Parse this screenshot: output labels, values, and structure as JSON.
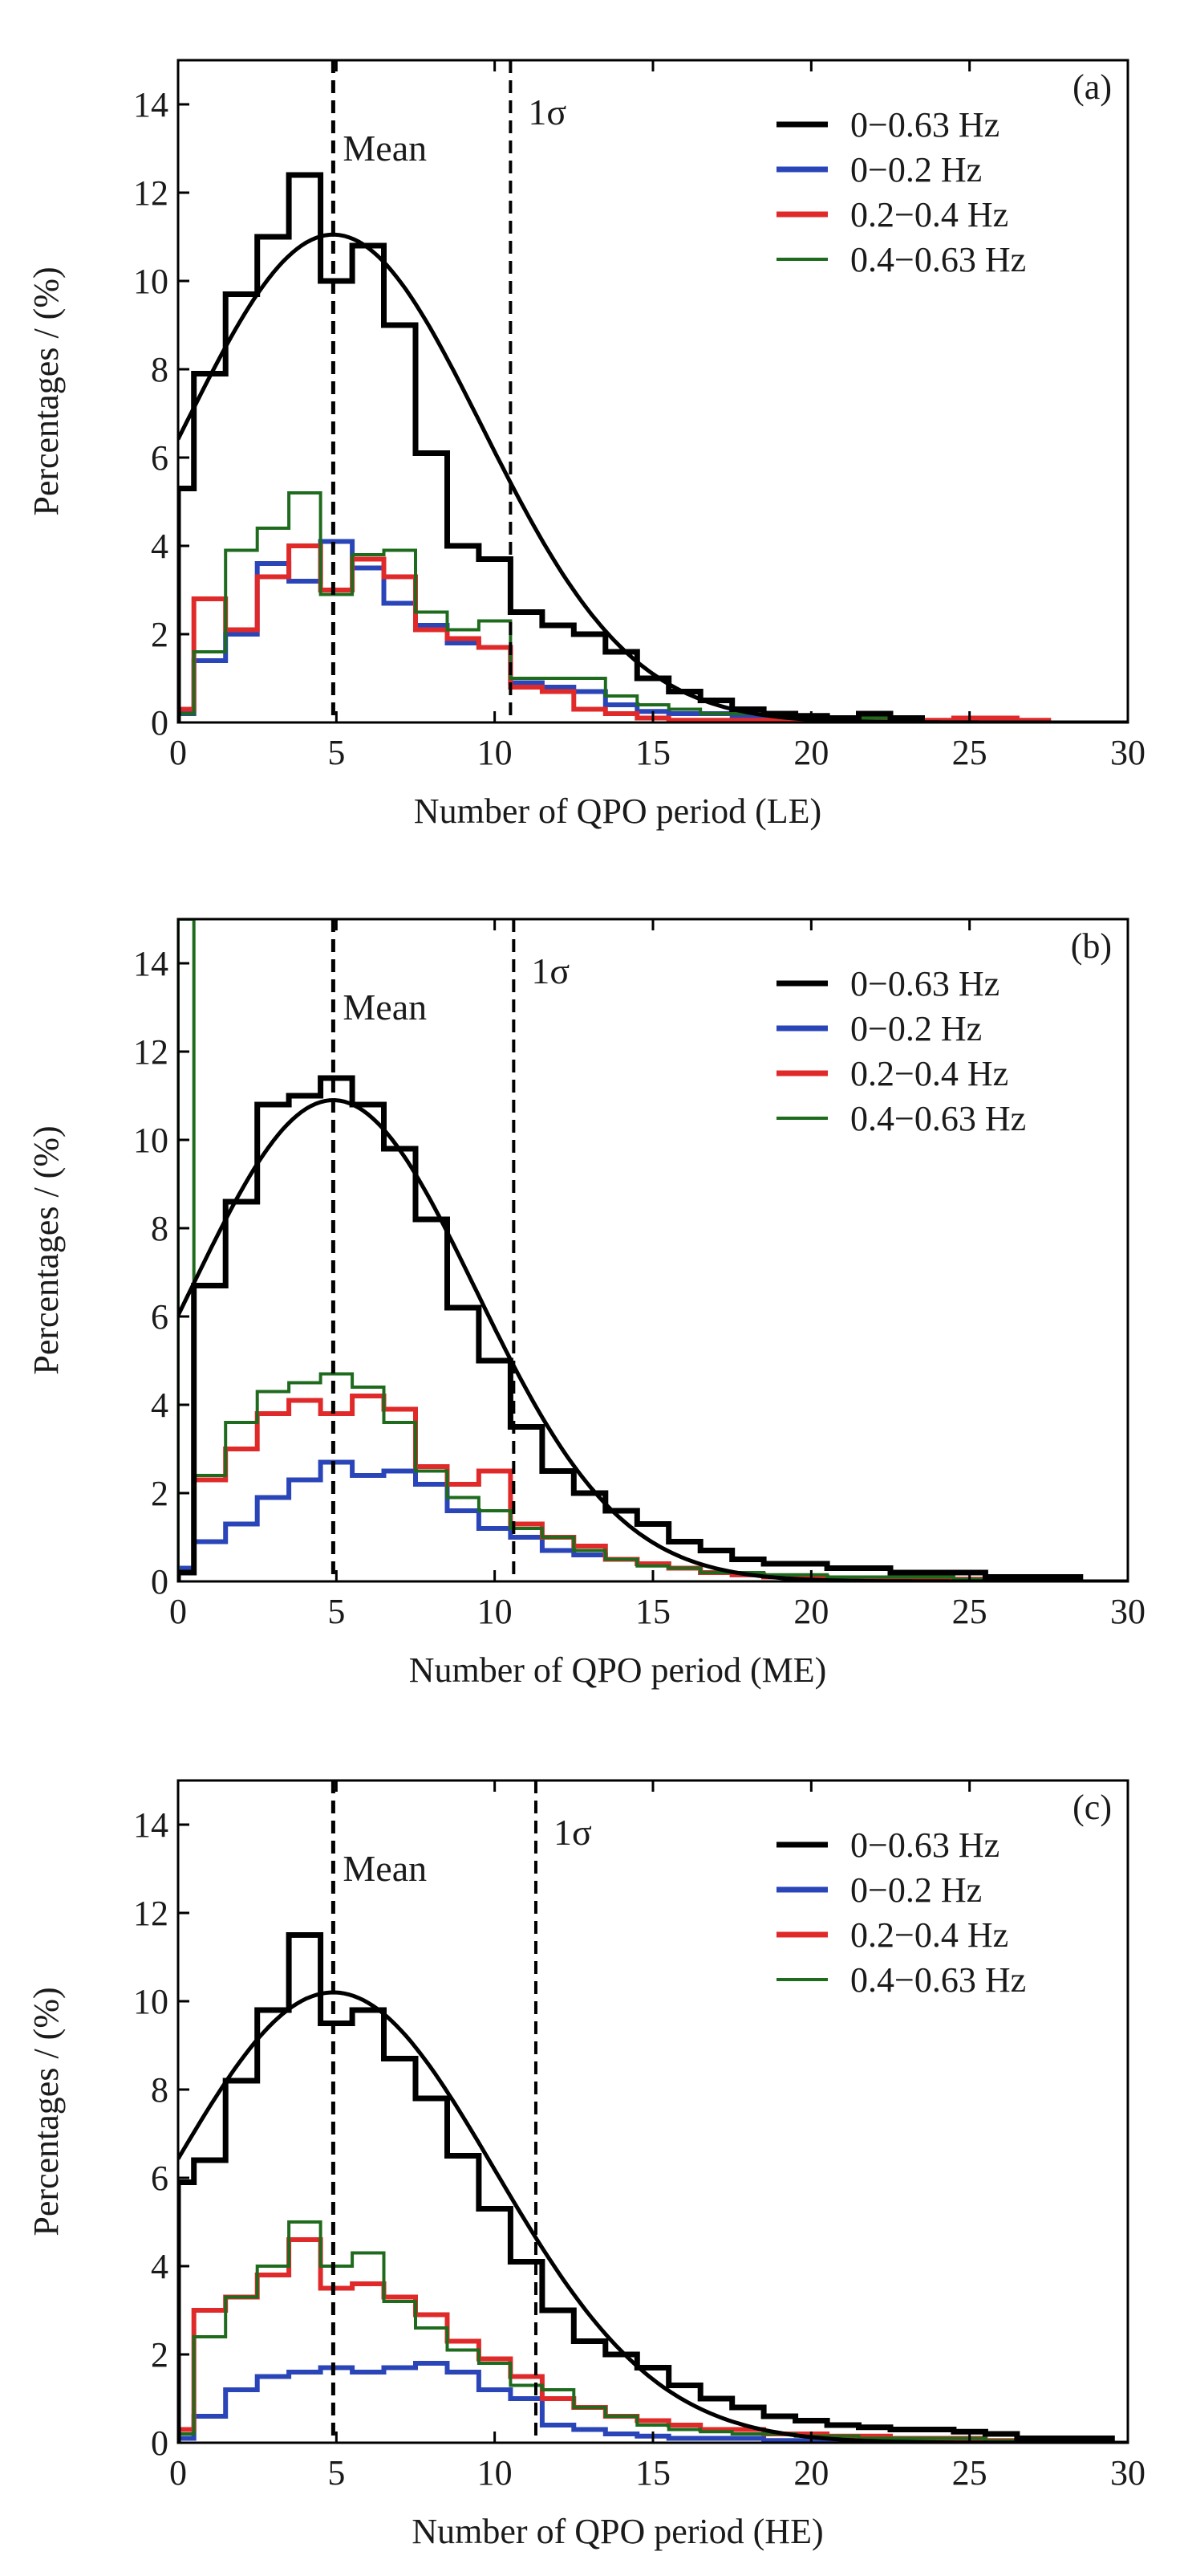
{
  "chart_data": [
    {
      "type": "line",
      "panel_label": "(a)",
      "xlabel": "Number of  QPO period (LE)",
      "ylabel": "Percentages / (%)",
      "xlim": [
        0,
        30
      ],
      "ylim": [
        0,
        15
      ],
      "xticks": [
        0,
        5,
        10,
        15,
        20,
        25,
        30
      ],
      "yticks": [
        0,
        2,
        4,
        6,
        8,
        10,
        12,
        14
      ],
      "mean_line": {
        "label": "Mean",
        "x": 4.9
      },
      "sigma_line": {
        "label": "1σ",
        "x": 10.5
      },
      "fit": {
        "peak": 11.05,
        "center": 4.9,
        "sigma": 4.7
      },
      "legend": {
        "position": "top-right"
      },
      "series": [
        {
          "name": "0−0.63 Hz",
          "color": "#000000",
          "stroke_width": 7,
          "bin_edges": [
            0,
            0.5,
            1.5,
            2.5,
            3.5,
            4.5,
            5.5,
            6.5,
            7.5,
            8.5,
            9.5,
            10.5,
            11.5,
            12.5,
            13.5,
            14.5,
            15.5,
            16.5,
            17.5,
            18.5,
            19.5,
            20.5,
            21.5,
            22.5,
            23.5
          ],
          "values": [
            5.3,
            7.9,
            9.7,
            11.0,
            12.4,
            10.0,
            10.8,
            9.0,
            6.1,
            4.0,
            3.7,
            2.5,
            2.2,
            2.0,
            1.6,
            1.0,
            0.7,
            0.5,
            0.3,
            0.2,
            0.15,
            0.1,
            0.2,
            0.1
          ]
        },
        {
          "name": "0−0.2 Hz",
          "color": "#2a45b8",
          "stroke_width": 6,
          "bin_edges": [
            0,
            0.5,
            1.5,
            2.5,
            3.5,
            4.5,
            5.5,
            6.5,
            7.5,
            8.5,
            9.5,
            10.5,
            11.5,
            12.5,
            13.5,
            14.5,
            15.5,
            16.5,
            17.5,
            18.5,
            19.5,
            20.5,
            21.5,
            22.5
          ],
          "values": [
            0.2,
            1.4,
            2.0,
            3.6,
            3.2,
            4.1,
            3.5,
            2.7,
            2.2,
            1.8,
            1.7,
            0.9,
            0.8,
            0.7,
            0.4,
            0.25,
            0.2,
            0.2,
            0.15,
            0.1,
            0.15,
            0.1,
            0.05
          ]
        },
        {
          "name": "0.2−0.4 Hz",
          "color": "#e02a2a",
          "stroke_width": 6,
          "bin_edges": [
            0,
            0.5,
            1.5,
            2.5,
            3.5,
            4.5,
            5.5,
            6.5,
            7.5,
            8.5,
            9.5,
            10.5,
            11.5,
            12.5,
            13.5,
            14.5,
            15.5,
            16.5,
            17.5,
            18.5,
            19.5,
            20.5,
            21.5,
            22.5,
            23.5,
            24.5,
            25.5,
            26.5,
            27.5
          ],
          "values": [
            0.3,
            2.8,
            2.1,
            3.3,
            4.0,
            3.0,
            3.7,
            3.3,
            2.1,
            1.9,
            1.7,
            0.8,
            0.7,
            0.3,
            0.2,
            0.1,
            0.05,
            0.05,
            0.05,
            0.05,
            0.05,
            0.05,
            0.05,
            0.05,
            0.05,
            0.1,
            0.1,
            0.05
          ]
        },
        {
          "name": "0.4−0.63 Hz",
          "color": "#1e6b1e",
          "stroke_width": 4,
          "bin_edges": [
            0,
            0.5,
            1.5,
            2.5,
            3.5,
            4.5,
            5.5,
            6.5,
            7.5,
            8.5,
            9.5,
            10.5,
            11.5,
            12.5,
            13.5,
            14.5,
            15.5,
            16.5,
            17.5,
            18.5,
            19.5,
            20.5,
            21.5,
            22.5
          ],
          "values": [
            0.2,
            1.6,
            3.9,
            4.4,
            5.2,
            2.9,
            3.8,
            3.9,
            2.5,
            2.1,
            2.3,
            1.0,
            1.0,
            1.0,
            0.6,
            0.4,
            0.3,
            0.2,
            0.2,
            0.2,
            0.15,
            0.1,
            0.1
          ]
        }
      ]
    },
    {
      "type": "line",
      "panel_label": "(b)",
      "xlabel": "Number of  QPO period (ME)",
      "ylabel": "Percentages / (%)",
      "xlim": [
        0,
        30
      ],
      "ylim": [
        0,
        15
      ],
      "xticks": [
        0,
        5,
        10,
        15,
        20,
        25,
        30
      ],
      "yticks": [
        0,
        2,
        4,
        6,
        8,
        10,
        12,
        14
      ],
      "mean_line": {
        "label": "Mean",
        "x": 4.9
      },
      "sigma_line": {
        "label": "1σ",
        "x": 10.6
      },
      "fit": {
        "peak": 10.9,
        "center": 4.9,
        "sigma": 4.5
      },
      "legend": {
        "position": "top-right"
      },
      "series": [
        {
          "name": "0−0.63 Hz",
          "color": "#000000",
          "stroke_width": 7,
          "bin_edges": [
            0,
            0.5,
            1.5,
            2.5,
            3.5,
            4.5,
            5.5,
            6.5,
            7.5,
            8.5,
            9.5,
            10.5,
            11.5,
            12.5,
            13.5,
            14.5,
            15.5,
            16.5,
            17.5,
            18.5,
            19.5,
            20.5,
            21.5,
            22.5,
            23.5,
            24.5,
            25.5,
            26.5,
            27.5,
            28.5
          ],
          "values": [
            0.2,
            6.7,
            8.6,
            10.8,
            11.0,
            11.4,
            10.8,
            9.8,
            8.2,
            6.2,
            5.0,
            3.5,
            2.5,
            2.0,
            1.6,
            1.3,
            0.9,
            0.7,
            0.5,
            0.4,
            0.4,
            0.3,
            0.3,
            0.2,
            0.2,
            0.2,
            0.1,
            0.1,
            0.1
          ]
        },
        {
          "name": "0−0.2 Hz",
          "color": "#2a45b8",
          "stroke_width": 6,
          "bin_edges": [
            0,
            0.5,
            1.5,
            2.5,
            3.5,
            4.5,
            5.5,
            6.5,
            7.5,
            8.5,
            9.5,
            10.5,
            11.5,
            12.5,
            13.5,
            14.5,
            15.5,
            16.5,
            17.5,
            18.5,
            19.5,
            20.5,
            21.5,
            22.5
          ],
          "values": [
            0.3,
            0.9,
            1.3,
            1.9,
            2.3,
            2.7,
            2.4,
            2.5,
            2.2,
            1.6,
            1.2,
            1.0,
            0.7,
            0.6,
            0.5,
            0.4,
            0.3,
            0.2,
            0.15,
            0.1,
            0.1,
            0.05,
            0.05
          ]
        },
        {
          "name": "0.2−0.4 Hz",
          "color": "#e02a2a",
          "stroke_width": 6,
          "bin_edges": [
            0,
            0.5,
            1.5,
            2.5,
            3.5,
            4.5,
            5.5,
            6.5,
            7.5,
            8.5,
            9.5,
            10.5,
            11.5,
            12.5,
            13.5,
            14.5,
            15.5,
            16.5,
            17.5,
            18.5,
            19.5,
            20.5,
            21.5,
            22.5,
            23.5,
            24.5,
            25.5,
            26.5,
            27.5
          ],
          "values": [
            0.2,
            2.3,
            3.0,
            3.8,
            4.1,
            3.8,
            4.2,
            3.9,
            2.6,
            2.2,
            2.5,
            1.3,
            1.0,
            0.8,
            0.5,
            0.4,
            0.3,
            0.2,
            0.15,
            0.1,
            0.1,
            0.05,
            0.05,
            0.05,
            0.05,
            0.05,
            0.05,
            0.05
          ]
        },
        {
          "name": "0.4−0.63 Hz",
          "color": "#1e6b1e",
          "stroke_width": 4,
          "bin_edges": [
            0,
            0.5,
            1.5,
            2.5,
            3.5,
            4.5,
            5.5,
            6.5,
            7.5,
            8.5,
            9.5,
            10.5,
            11.5,
            12.5,
            13.5,
            14.5,
            15.5,
            16.5,
            17.5,
            18.5,
            19.5,
            20.5,
            21.5,
            22.5,
            23.5,
            24.5,
            25.5,
            26.5,
            27.5,
            28.5
          ],
          "values": [
            15,
            2.4,
            3.6,
            4.3,
            4.5,
            4.7,
            4.4,
            3.6,
            2.5,
            1.9,
            1.6,
            1.2,
            1.0,
            0.7,
            0.5,
            0.35,
            0.3,
            0.2,
            0.2,
            0.15,
            0.15,
            0.1,
            0.1,
            0.1,
            0.1,
            0.05,
            0.05,
            0.05,
            0.05
          ]
        }
      ]
    },
    {
      "type": "line",
      "panel_label": "(c)",
      "xlabel": "Number of  QPO period (HE)",
      "ylabel": "Percentages / (%)",
      "xlim": [
        0,
        30
      ],
      "ylim": [
        0,
        15
      ],
      "xticks": [
        0,
        5,
        10,
        15,
        20,
        25,
        30
      ],
      "yticks": [
        0,
        2,
        4,
        6,
        8,
        10,
        12,
        14
      ],
      "mean_line": {
        "label": "Mean",
        "x": 4.9
      },
      "sigma_line": {
        "label": "1σ",
        "x": 11.3
      },
      "fit": {
        "peak": 10.2,
        "center": 4.9,
        "sigma": 5.1
      },
      "legend": {
        "position": "top-right"
      },
      "series": [
        {
          "name": "0−0.63 Hz",
          "color": "#000000",
          "stroke_width": 7,
          "bin_edges": [
            0,
            0.5,
            1.5,
            2.5,
            3.5,
            4.5,
            5.5,
            6.5,
            7.5,
            8.5,
            9.5,
            10.5,
            11.5,
            12.5,
            13.5,
            14.5,
            15.5,
            16.5,
            17.5,
            18.5,
            19.5,
            20.5,
            21.5,
            22.5,
            23.5,
            24.5,
            25.5,
            26.5,
            27.5,
            28.5,
            29.5
          ],
          "values": [
            5.9,
            6.4,
            8.2,
            9.8,
            11.5,
            9.5,
            9.8,
            8.7,
            7.8,
            6.5,
            5.3,
            4.1,
            3.0,
            2.3,
            2.0,
            1.7,
            1.3,
            1.0,
            0.8,
            0.6,
            0.5,
            0.4,
            0.35,
            0.3,
            0.3,
            0.25,
            0.2,
            0.1,
            0.1,
            0.1
          ]
        },
        {
          "name": "0−0.2 Hz",
          "color": "#2a45b8",
          "stroke_width": 6,
          "bin_edges": [
            0,
            0.5,
            1.5,
            2.5,
            3.5,
            4.5,
            5.5,
            6.5,
            7.5,
            8.5,
            9.5,
            10.5,
            11.5,
            12.5,
            13.5,
            14.5,
            15.5,
            16.5,
            17.5,
            18.5,
            19.5,
            20.5,
            21.5
          ],
          "values": [
            0.1,
            0.6,
            1.2,
            1.5,
            1.6,
            1.7,
            1.6,
            1.7,
            1.8,
            1.6,
            1.2,
            1.0,
            0.4,
            0.3,
            0.2,
            0.15,
            0.1,
            0.1,
            0.1,
            0.05,
            0.05,
            0.05
          ]
        },
        {
          "name": "0.2−0.4 Hz",
          "color": "#e02a2a",
          "stroke_width": 6,
          "bin_edges": [
            0,
            0.5,
            1.5,
            2.5,
            3.5,
            4.5,
            5.5,
            6.5,
            7.5,
            8.5,
            9.5,
            10.5,
            11.5,
            12.5,
            13.5,
            14.5,
            15.5,
            16.5,
            17.5,
            18.5,
            19.5,
            20.5,
            21.5,
            22.5,
            23.5,
            24.5,
            25.5,
            26.5,
            27.5,
            28.5
          ],
          "values": [
            0.3,
            3.0,
            3.3,
            3.8,
            4.6,
            3.5,
            3.6,
            3.3,
            2.9,
            2.3,
            1.9,
            1.5,
            1.0,
            0.8,
            0.6,
            0.5,
            0.4,
            0.3,
            0.3,
            0.2,
            0.2,
            0.15,
            0.15,
            0.1,
            0.1,
            0.1,
            0.05,
            0.05,
            0.05
          ]
        },
        {
          "name": "0.4−0.63 Hz",
          "color": "#1e6b1e",
          "stroke_width": 4,
          "bin_edges": [
            0,
            0.5,
            1.5,
            2.5,
            3.5,
            4.5,
            5.5,
            6.5,
            7.5,
            8.5,
            9.5,
            10.5,
            11.5,
            12.5,
            13.5,
            14.5,
            15.5,
            16.5,
            17.5,
            18.5,
            19.5,
            20.5,
            21.5,
            22.5,
            23.5,
            24.5,
            25.5,
            26.5,
            27.5,
            28.5
          ],
          "values": [
            0.2,
            2.4,
            3.3,
            4.0,
            5.0,
            4.0,
            4.3,
            3.2,
            2.6,
            2.1,
            1.8,
            1.3,
            1.2,
            0.8,
            0.6,
            0.4,
            0.3,
            0.25,
            0.2,
            0.2,
            0.15,
            0.15,
            0.1,
            0.1,
            0.1,
            0.1,
            0.05,
            0.05,
            0.05
          ]
        }
      ]
    }
  ]
}
